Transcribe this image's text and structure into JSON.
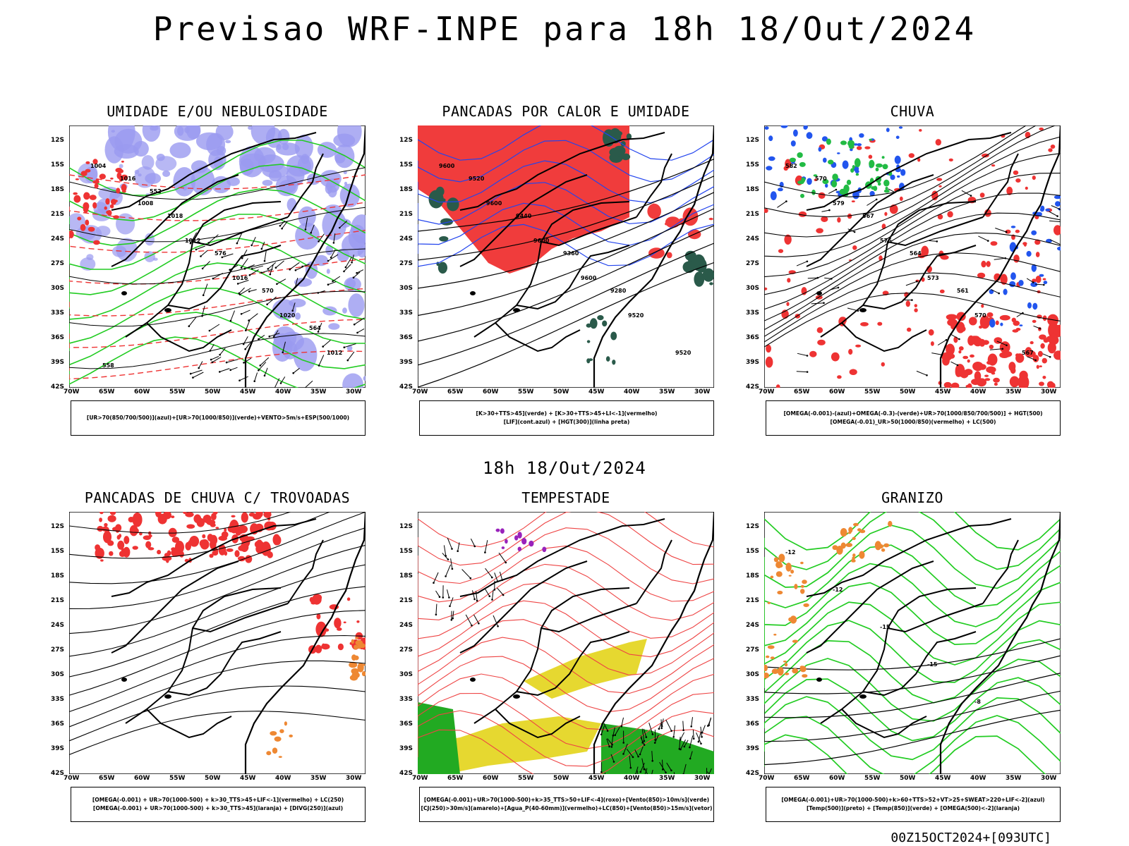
{
  "title": "Previsao WRF-INPE  para 18h 18/Out/2024",
  "subtitle": "18h 18/Out/2024",
  "footer": "00Z15OCT2024+[093UTC]",
  "lat_labels": [
    "12S",
    "15S",
    "18S",
    "21S",
    "24S",
    "27S",
    "30S",
    "33S",
    "36S",
    "39S",
    "42S"
  ],
  "lon_labels": [
    "70W",
    "65W",
    "60W",
    "55W",
    "50W",
    "45W",
    "40W",
    "35W",
    "30W"
  ],
  "panels": [
    {
      "title": "UMIDADE E/OU NEBULOSIDADE",
      "legend": [
        "[UR>70(850/700/500)](azul)+[UR>70(1000/850)](verde)+VENTO>5m/s+ESP(500/1000)"
      ],
      "contour_labels": [
        "1004",
        "1008",
        "1012",
        "1016",
        "1020",
        "1012",
        "1016",
        "1018",
        "576",
        "570",
        "564",
        "558",
        "552"
      ],
      "colors": {
        "blue_area": "#9a9af0",
        "green_line": "#22cc22",
        "red_dash": "#ee3333",
        "black": "#000000"
      }
    },
    {
      "title": "PANCADAS POR CALOR E UMIDADE",
      "legend": [
        "[K>30+TTS>45](verde) + [K>30+TTS>45+LI<-1](vermelho)",
        "[LIF](cont.azul) + [HGT(300)](linha preta)"
      ],
      "contour_labels": [
        "9600",
        "9600",
        "9600",
        "9600",
        "9520",
        "9520",
        "9520",
        "9440",
        "9360",
        "9280"
      ],
      "colors": {
        "red_area": "#f03c3c",
        "dark_green": "#2a5a4a",
        "blue_line": "#2244ee"
      }
    },
    {
      "title": "CHUVA",
      "legend": [
        "[OMEGA(-0.001)-(azul)+OMEGA(-0.3)-(verde)+UR>70(1000/850/700/500)] + HGT(500)",
        "[OMEGA(-0.01)_UR>50(1000/850)(vermelho) + LC(500)"
      ],
      "contour_labels": [
        "582",
        "579",
        "576",
        "573",
        "570",
        "567",
        "570",
        "567",
        "564",
        "561"
      ],
      "colors": {
        "red": "#ee3333",
        "blue": "#2255ee",
        "green": "#22bb44"
      }
    },
    {
      "title": "PANCADAS DE CHUVA C/ TROVOADAS",
      "legend": [
        "[OMEGA(-0.001) + UR>70(1000-500) + k>30_TTS>45+LIF<-1](vermelho) + LC(250)",
        "[OMEGA(-0.001) + UR>70(1000-500) + k>30_TTS>45](laranja) + [DIVG(250)](azul)"
      ],
      "contour_labels": [],
      "colors": {
        "red": "#ee3333",
        "orange": "#ee8833"
      }
    },
    {
      "title": "TEMPESTADE",
      "legend": [
        "[OMEGA(-0.001)+UR>70(1000-500)+k>35_TTS>50+LIF<-4](roxo)+[Vento(850)>10m/s](verde)",
        "[CJ(250)>30m/s](amarelo)+[Agua_P(40-60mm)](vermelho)+LC(850)+[Vento(850)>15m/s](vetor)"
      ],
      "contour_labels": [],
      "colors": {
        "red_line": "#ee4444",
        "yellow": "#e6d830",
        "green": "#22aa22",
        "purple": "#9922bb"
      }
    },
    {
      "title": "GRANIZO",
      "legend": [
        "[OMEGA(-0.001)+UR>70(1000-500)+k>60+TTS>52+VT>25+SWEAT>220+LIF<-2](azul)",
        "[Temp(500)](preto) + [Temp(850)](verde) + [OMEGA(500)<-2](laranja)"
      ],
      "contour_labels": [
        "-12",
        "-12",
        "-15",
        "-15",
        "-8"
      ],
      "colors": {
        "green": "#22cc22",
        "orange": "#ee8833",
        "black": "#000000"
      }
    }
  ]
}
